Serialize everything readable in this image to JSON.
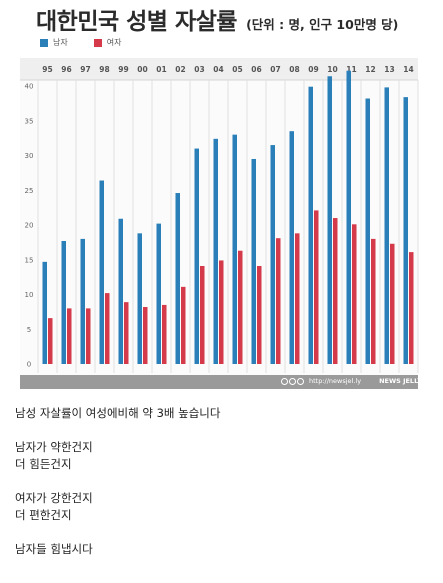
{
  "chart_data": {
    "type": "bar",
    "title": "대한민국 성별 자살률",
    "unit_note": "(단위 : 명, 인구 10만명 당)",
    "categories": [
      "95",
      "96",
      "97",
      "98",
      "99",
      "00",
      "01",
      "02",
      "03",
      "04",
      "05",
      "06",
      "07",
      "08",
      "09",
      "10",
      "11",
      "12",
      "13",
      "14"
    ],
    "series": [
      {
        "name": "남자",
        "color": "#2a7fb8",
        "values": [
          14.7,
          17.7,
          18.0,
          26.4,
          20.9,
          18.8,
          20.2,
          24.6,
          31.0,
          32.4,
          33.0,
          29.5,
          31.5,
          33.5,
          39.9,
          41.4,
          42.2,
          38.2,
          39.8,
          38.4
        ]
      },
      {
        "name": "여자",
        "color": "#d43a4a",
        "values": [
          6.6,
          8.0,
          8.0,
          10.2,
          8.9,
          8.2,
          8.5,
          11.1,
          14.1,
          14.9,
          16.3,
          14.1,
          18.1,
          18.8,
          22.1,
          21.0,
          20.1,
          18.0,
          17.3,
          16.1
        ]
      }
    ],
    "yticks": [
      0,
      5,
      10,
      15,
      20,
      25,
      30,
      35,
      40
    ],
    "ylim": [
      0,
      44
    ],
    "grid": "vertical",
    "legend": "top-left"
  },
  "credit": {
    "url": "http://newsjel.ly",
    "brand": "NEWS JELLY"
  },
  "caption": [
    [
      "남성 자살률이 여성에비해 약 3배 높습니다"
    ],
    [
      "남자가 약한건지",
      "더 힘든건지"
    ],
    [
      "여자가 강한건지",
      "더 편한건지"
    ],
    [
      "남자들 힘냅시다"
    ]
  ]
}
